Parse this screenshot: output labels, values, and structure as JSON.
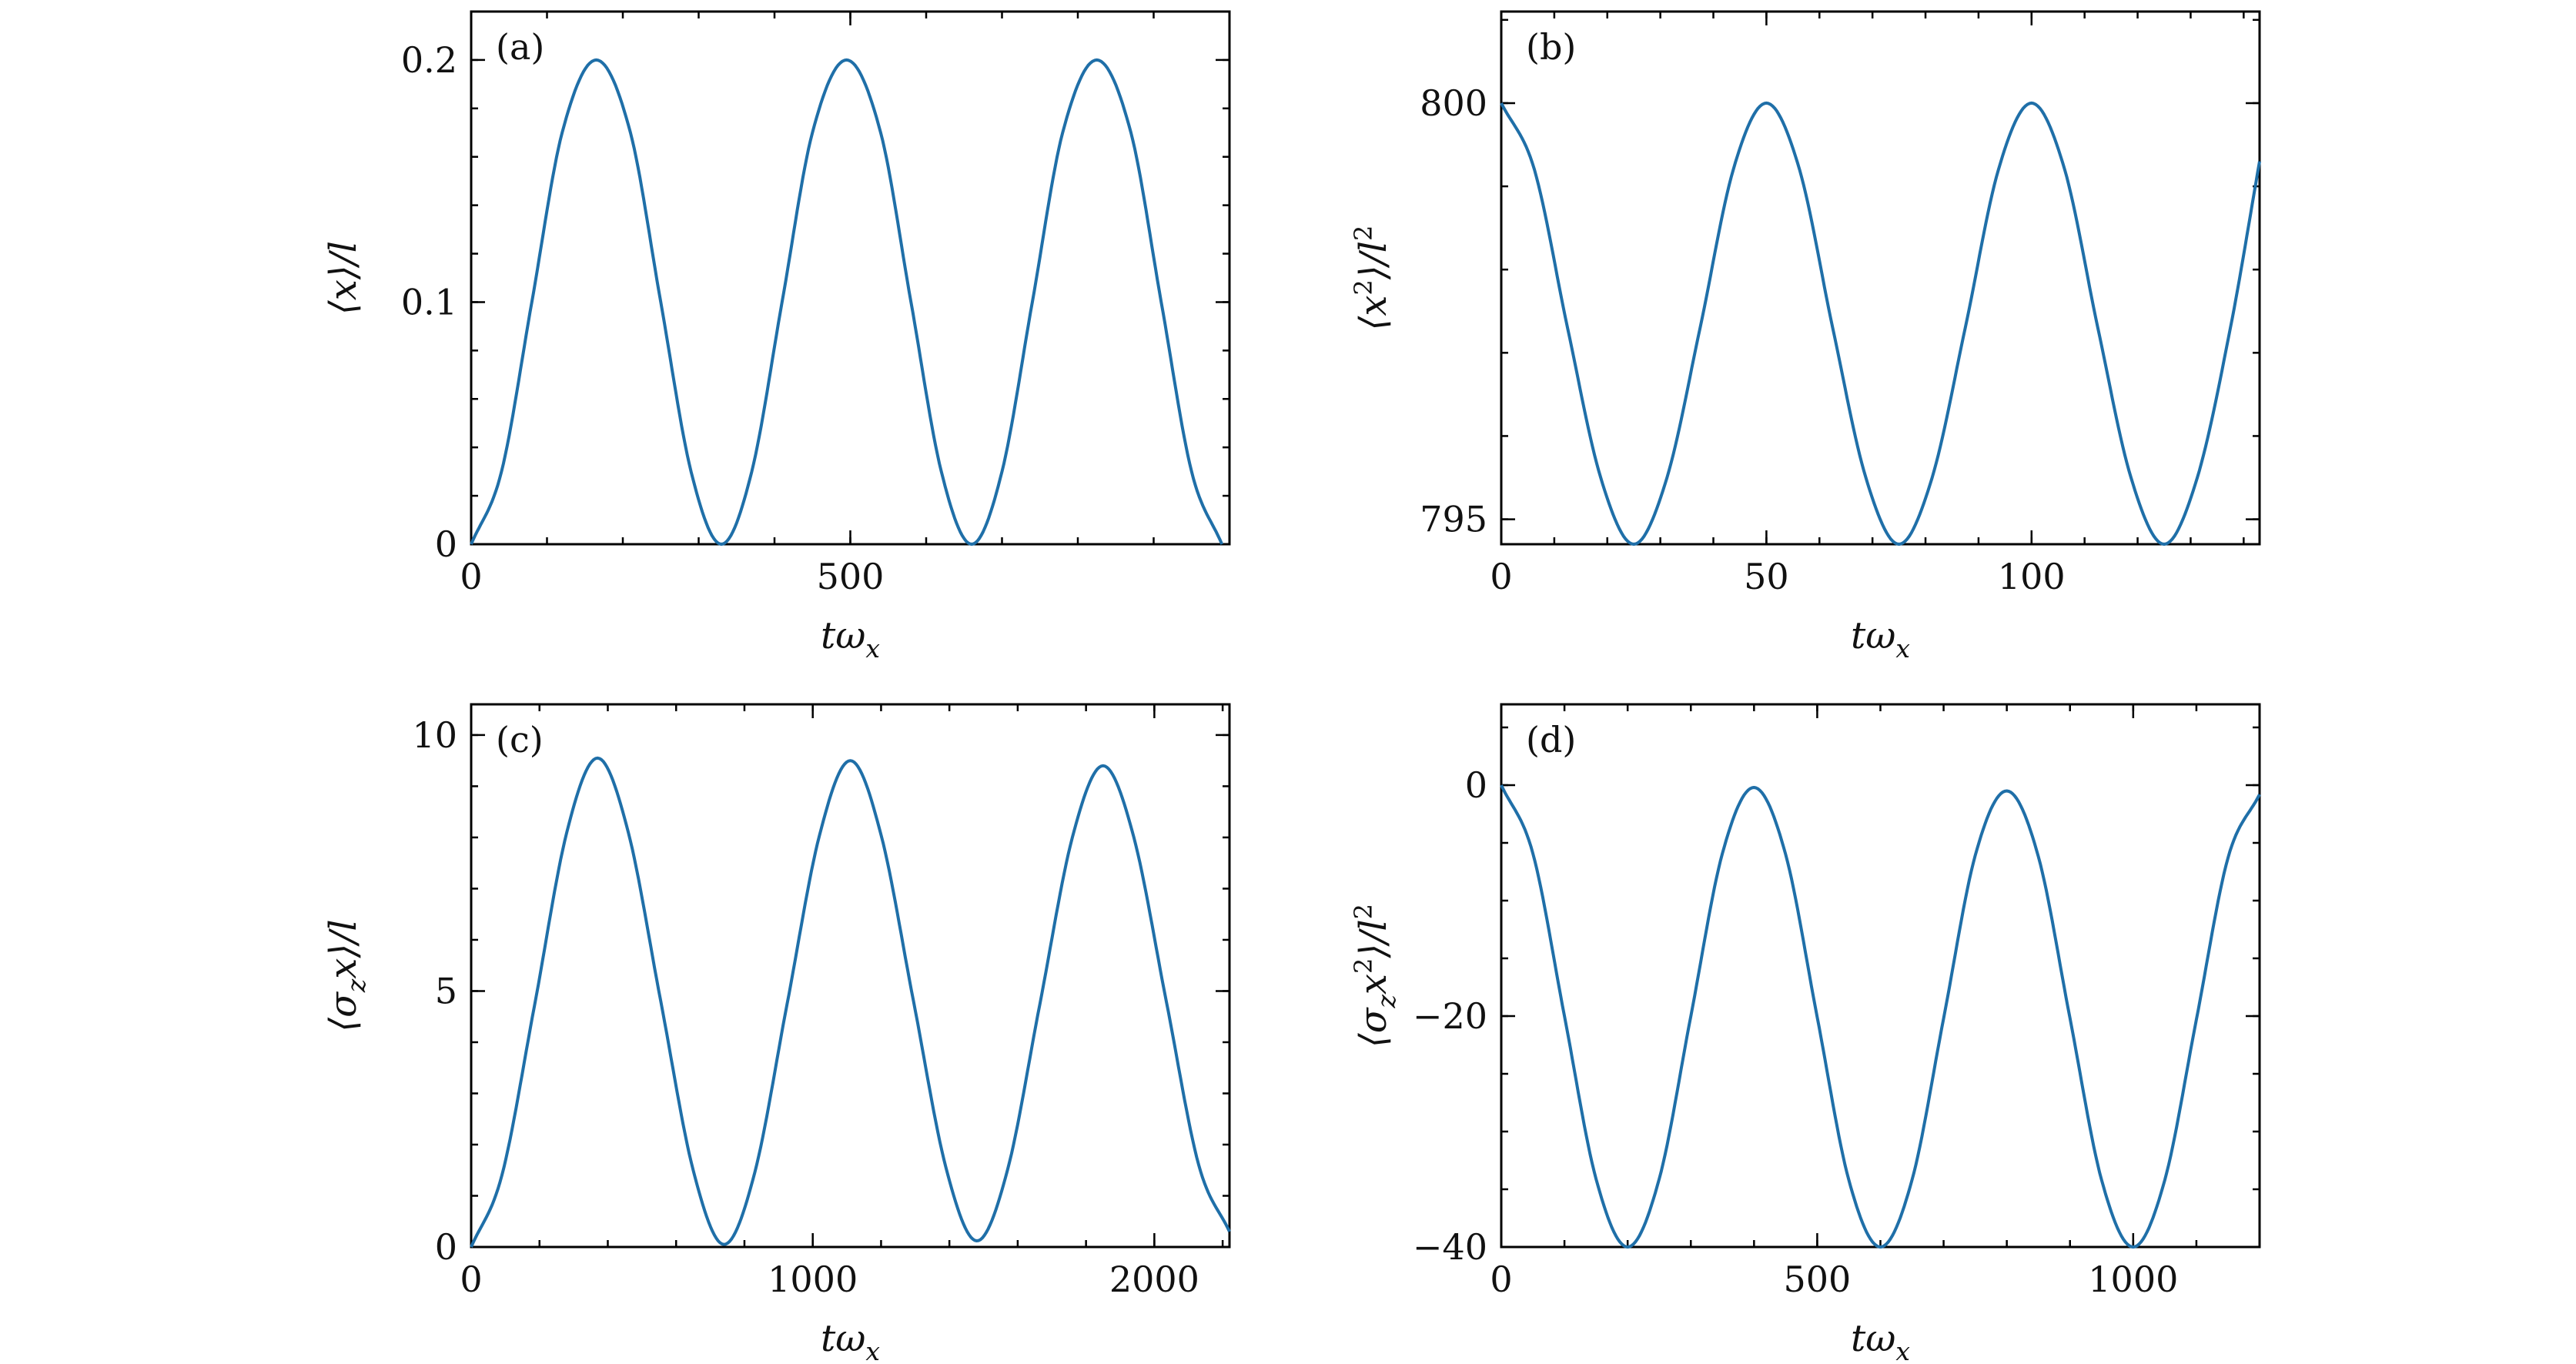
{
  "colors": {
    "series": "#1f6fa8",
    "axes": "#000000",
    "background": "#ffffff"
  },
  "chart_data": [
    {
      "type": "line",
      "panel_label": "(a)",
      "xlabel": "tω_x",
      "ylabel": "⟨x⟩/l",
      "xlim": [
        0,
        1000
      ],
      "ylim": [
        0,
        0.22
      ],
      "xticks": [
        0,
        500
      ],
      "xtick_labels": [
        "0",
        "500"
      ],
      "yticks": [
        0,
        0.1,
        0.2
      ],
      "ytick_labels": [
        "0",
        "0.1",
        "0.2"
      ],
      "x_minor_step": 100,
      "y_minor_step": 0.02,
      "grid": false,
      "series": [
        {
          "x": [
            0,
            40,
            80,
            120,
            165,
            210,
            250,
            290,
            330,
            370,
            410,
            450,
            495,
            540,
            580,
            620,
            660,
            700,
            740,
            780,
            825,
            870,
            910,
            950,
            990
          ],
          "y": [
            0,
            0.03,
            0.1,
            0.17,
            0.2,
            0.17,
            0.1,
            0.03,
            0,
            0.03,
            0.1,
            0.17,
            0.2,
            0.17,
            0.1,
            0.03,
            0,
            0.03,
            0.1,
            0.17,
            0.2,
            0.17,
            0.1,
            0.03,
            0
          ]
        }
      ]
    },
    {
      "type": "line",
      "panel_label": "(b)",
      "xlabel": "tω_x",
      "ylabel": "⟨x²⟩/l²",
      "xlim": [
        0,
        143
      ],
      "ylim": [
        794.7,
        801.1
      ],
      "xticks": [
        0,
        50,
        100
      ],
      "xtick_labels": [
        "0",
        "50",
        "100"
      ],
      "yticks": [
        795,
        800
      ],
      "ytick_labels": [
        "795",
        "800"
      ],
      "x_minor_step": 10,
      "y_minor_step": 1,
      "grid": false,
      "series": [
        {
          "x": [
            0,
            6.25,
            12.5,
            18.75,
            25,
            31.25,
            37.5,
            43.75,
            50,
            56.25,
            62.5,
            68.75,
            75,
            81.25,
            87.5,
            93.75,
            100,
            106.25,
            112.5,
            118.75,
            125,
            131.25,
            137.5,
            143
          ],
          "y": [
            800,
            799.2,
            797.3,
            795.5,
            794.7,
            795.5,
            797.3,
            799.2,
            800,
            799.2,
            797.3,
            795.5,
            794.7,
            795.5,
            797.3,
            799.2,
            800,
            799.2,
            797.3,
            795.5,
            794.7,
            795.5,
            797.3,
            799.3
          ]
        }
      ]
    },
    {
      "type": "line",
      "panel_label": "(c)",
      "xlabel": "tω_x",
      "ylabel": "⟨σ_zx⟩/l",
      "xlim": [
        0,
        2220
      ],
      "ylim": [
        0,
        10.6
      ],
      "xticks": [
        0,
        1000,
        2000
      ],
      "xtick_labels": [
        "0",
        "1000",
        "2000"
      ],
      "yticks": [
        0,
        5,
        10
      ],
      "ytick_labels": [
        "0",
        "5",
        "10"
      ],
      "x_minor_step": 200,
      "y_minor_step": 1,
      "grid": false,
      "series": [
        {
          "x": [
            0,
            90,
            185,
            280,
            370,
            460,
            555,
            650,
            740,
            830,
            925,
            1020,
            1110,
            1200,
            1295,
            1390,
            1480,
            1570,
            1665,
            1760,
            1850,
            1940,
            2035,
            2130,
            2220
          ],
          "y": [
            0,
            1.4,
            4.7,
            8.1,
            9.55,
            8.1,
            4.8,
            1.5,
            0.05,
            1.45,
            4.75,
            8.05,
            9.5,
            8.05,
            4.8,
            1.55,
            0.12,
            1.5,
            4.75,
            8.0,
            9.4,
            8.0,
            4.8,
            1.6,
            0.3
          ]
        }
      ]
    },
    {
      "type": "line",
      "panel_label": "(d)",
      "xlabel": "tω_x",
      "ylabel": "⟨σ_zx²⟩/l²",
      "xlim": [
        0,
        1200
      ],
      "ylim": [
        -40,
        7
      ],
      "xticks": [
        0,
        500,
        1000
      ],
      "xtick_labels": [
        "0",
        "500",
        "1000"
      ],
      "yticks": [
        -40,
        -20,
        0
      ],
      "ytick_labels": [
        "−40",
        "−20",
        "0"
      ],
      "x_minor_step": 100,
      "y_minor_step": 5,
      "grid": false,
      "series": [
        {
          "x": [
            0,
            50,
            100,
            150,
            200,
            250,
            300,
            350,
            400,
            450,
            500,
            550,
            600,
            650,
            700,
            750,
            800,
            850,
            900,
            950,
            1000,
            1050,
            1100,
            1150,
            1200
          ],
          "y": [
            0,
            -5.9,
            -20,
            -34.1,
            -40,
            -34.1,
            -20,
            -5.9,
            -0.2,
            -6.0,
            -20.1,
            -34.2,
            -40,
            -34.2,
            -20.2,
            -6.1,
            -0.5,
            -6.2,
            -20.2,
            -34.2,
            -40,
            -34.2,
            -20.3,
            -6.3,
            -0.8
          ]
        }
      ]
    }
  ]
}
